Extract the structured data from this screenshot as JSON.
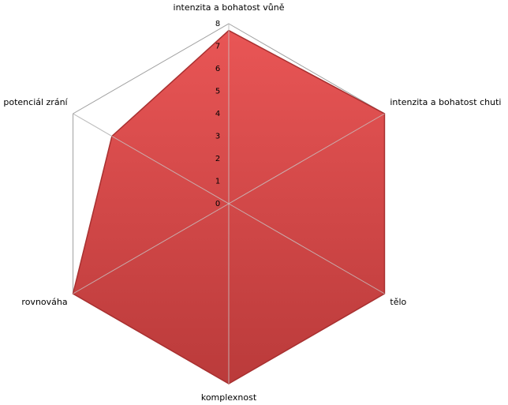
{
  "chart_data": {
    "type": "radar",
    "categories": [
      "intenzita a bohatost vůně",
      "intenzita a bohatost chuti",
      "tělo",
      "komplexnost",
      "rovnováha",
      "potenciál zrání"
    ],
    "series": [
      {
        "color": "#d84444",
        "values": [
          7.7,
          8,
          8,
          8,
          8,
          6
        ]
      }
    ],
    "ylim": [
      0,
      8
    ],
    "yticks": [
      0,
      1,
      2,
      3,
      4,
      5,
      6,
      7,
      8
    ],
    "grid": true
  }
}
